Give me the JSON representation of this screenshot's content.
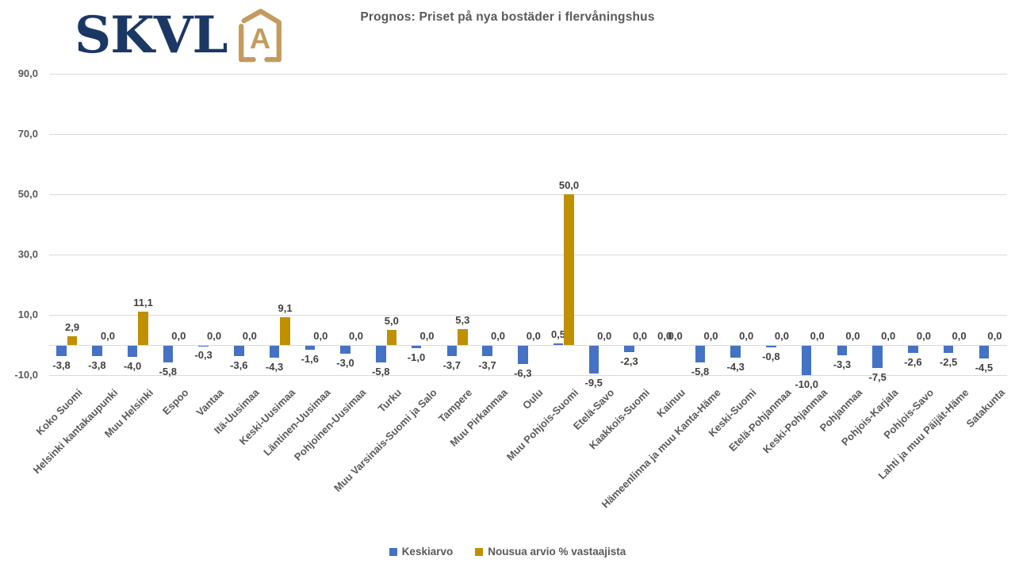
{
  "logo": {
    "text": "SKVL",
    "text_color": "#1B3764",
    "icon_color": "#C49B5F",
    "icon_letter": "A"
  },
  "chart_data": {
    "type": "bar",
    "title": "Prognos: Priset på nya bostäder i flervåningshus",
    "categories": [
      "Koko Suomi",
      "Helsinki kantakaupunki",
      "Muu Helsinki",
      "Espoo",
      "Vantaa",
      "Itä-Uusimaa",
      "Keski-Uusimaa",
      "Läntinen-Uusimaa",
      "Pohjoinen-Uusimaa",
      "Turku",
      "Muu Varsinais-Suomi ja Salo",
      "Tampere",
      "Muu Pirkanmaa",
      "Oulu",
      "Muu Pohjois-Suomi",
      "Etelä-Savo",
      "Kaakkois-Suomi",
      "Kainuu",
      "Hämeenlinna ja muu Kanta-Häme",
      "Keski-Suomi",
      "Etelä-Pohjanmaa",
      "Keski-Pohjanmaa",
      "Pohjanmaa",
      "Pohjois-Karjala",
      "Pohjois-Savo",
      "Lahti ja muu Päijät-Häme",
      "Satakunta"
    ],
    "series": [
      {
        "name": "Keskiarvo",
        "color": "#4472C4",
        "values": [
          -3.8,
          -3.8,
          -4.0,
          -5.8,
          -0.3,
          -3.6,
          -4.3,
          -1.6,
          -3.0,
          -5.8,
          -1.0,
          -3.7,
          -3.7,
          -6.3,
          0.5,
          -9.5,
          -2.3,
          0.0,
          -5.8,
          -4.3,
          -0.8,
          -10.0,
          -3.3,
          -7.5,
          -2.6,
          -2.5,
          -4.5
        ]
      },
      {
        "name": "Nousua arvio % vastaajista",
        "color": "#BF9000",
        "values": [
          2.9,
          0.0,
          11.1,
          0.0,
          0.0,
          0.0,
          9.1,
          0.0,
          0.0,
          5.0,
          0.0,
          5.3,
          0.0,
          0.0,
          50.0,
          0.0,
          0.0,
          0.0,
          0.0,
          0.0,
          0.0,
          0.0,
          0.0,
          0.0,
          0.0,
          0.0,
          0.0
        ]
      }
    ],
    "ylim": [
      -10,
      90
    ],
    "yticks": [
      90,
      70,
      50,
      30,
      10,
      -10
    ],
    "grid": true,
    "data_labels": true,
    "decimal_separator": ",",
    "legend_position": "bottom",
    "gridline_color": "#d9d9d9"
  }
}
